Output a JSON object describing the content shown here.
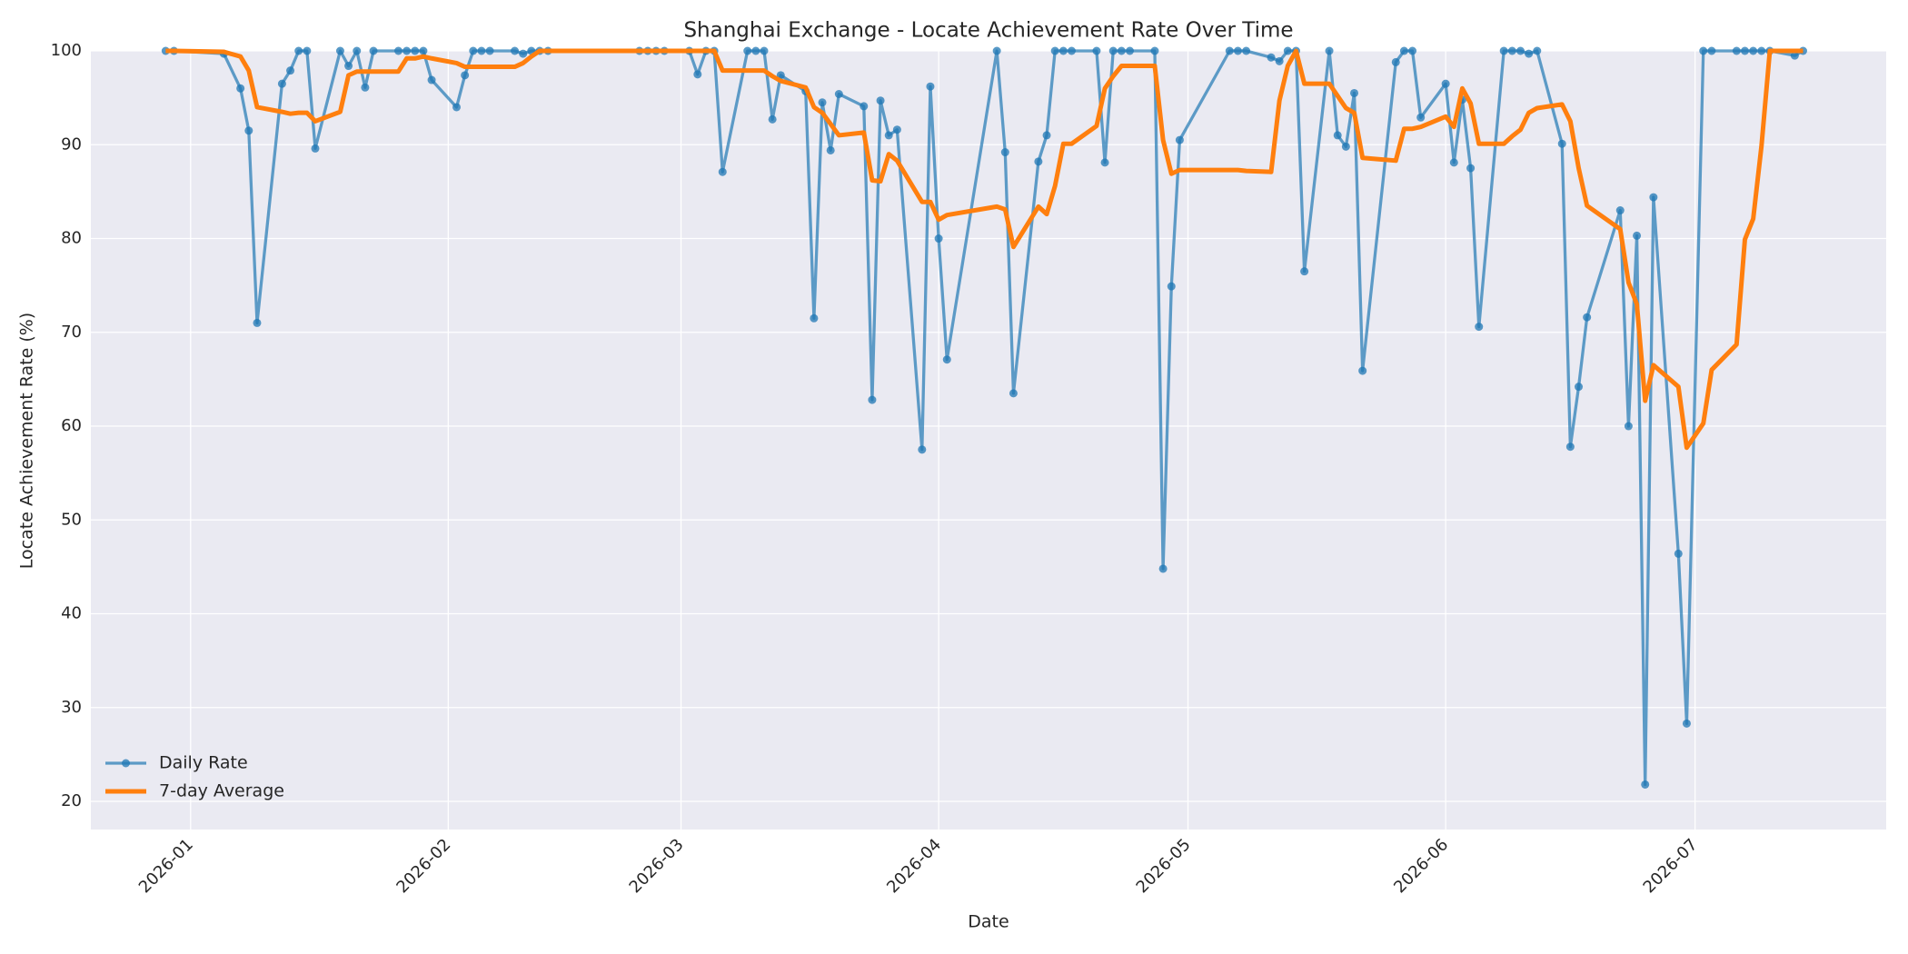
{
  "chart_data": {
    "type": "line",
    "title": "Shanghai Exchange - Locate Achievement Rate Over Time",
    "x_label": "Date",
    "y_label": "Locate Achievement Rate (%)",
    "xlim": [
      "2025-12-20",
      "2026-07-24"
    ],
    "xticks": [
      {
        "value": "2026-01-01",
        "label": "2026-01"
      },
      {
        "value": "2026-02-01",
        "label": "2026-02"
      },
      {
        "value": "2026-03-01",
        "label": "2026-03"
      },
      {
        "value": "2026-04-01",
        "label": "2026-04"
      },
      {
        "value": "2026-05-01",
        "label": "2026-05"
      },
      {
        "value": "2026-06-01",
        "label": "2026-06"
      },
      {
        "value": "2026-07-01",
        "label": "2026-07"
      }
    ],
    "ylim": [
      17,
      100
    ],
    "yticks": [
      20,
      30,
      40,
      50,
      60,
      70,
      80,
      90,
      100
    ],
    "grid": true,
    "legend": "lower left",
    "x": [
      "2025-12-29",
      "2025-12-30",
      "2026-01-05",
      "2026-01-07",
      "2026-01-08",
      "2026-01-09",
      "2026-01-12",
      "2026-01-13",
      "2026-01-14",
      "2026-01-15",
      "2026-01-16",
      "2026-01-19",
      "2026-01-20",
      "2026-01-21",
      "2026-01-22",
      "2026-01-23",
      "2026-01-26",
      "2026-01-27",
      "2026-01-28",
      "2026-01-29",
      "2026-01-30",
      "2026-02-02",
      "2026-02-03",
      "2026-02-04",
      "2026-02-05",
      "2026-02-06",
      "2026-02-09",
      "2026-02-10",
      "2026-02-11",
      "2026-02-12",
      "2026-02-13",
      "2026-02-24",
      "2026-02-25",
      "2026-02-26",
      "2026-02-27",
      "2026-03-02",
      "2026-03-03",
      "2026-03-04",
      "2026-03-05",
      "2026-03-06",
      "2026-03-09",
      "2026-03-10",
      "2026-03-11",
      "2026-03-12",
      "2026-03-13",
      "2026-03-16",
      "2026-03-17",
      "2026-03-18",
      "2026-03-19",
      "2026-03-20",
      "2026-03-23",
      "2026-03-24",
      "2026-03-25",
      "2026-03-26",
      "2026-03-27",
      "2026-03-30",
      "2026-03-31",
      "2026-04-01",
      "2026-04-02",
      "2026-04-08",
      "2026-04-09",
      "2026-04-10",
      "2026-04-13",
      "2026-04-14",
      "2026-04-15",
      "2026-04-16",
      "2026-04-17",
      "2026-04-20",
      "2026-04-21",
      "2026-04-22",
      "2026-04-23",
      "2026-04-24",
      "2026-04-27",
      "2026-04-28",
      "2026-04-29",
      "2026-04-30",
      "2026-05-06",
      "2026-05-07",
      "2026-05-08",
      "2026-05-11",
      "2026-05-12",
      "2026-05-13",
      "2026-05-14",
      "2026-05-15",
      "2026-05-18",
      "2026-05-19",
      "2026-05-20",
      "2026-05-21",
      "2026-05-22",
      "2026-05-26",
      "2026-05-27",
      "2026-05-28",
      "2026-05-29",
      "2026-06-01",
      "2026-06-02",
      "2026-06-03",
      "2026-06-04",
      "2026-06-05",
      "2026-06-08",
      "2026-06-09",
      "2026-06-10",
      "2026-06-11",
      "2026-06-12",
      "2026-06-15",
      "2026-06-16",
      "2026-06-17",
      "2026-06-18",
      "2026-06-22",
      "2026-06-23",
      "2026-06-24",
      "2026-06-25",
      "2026-06-26",
      "2026-06-29",
      "2026-06-30",
      "2026-07-02",
      "2026-07-03",
      "2026-07-06",
      "2026-07-07",
      "2026-07-08",
      "2026-07-09",
      "2026-07-10",
      "2026-07-13",
      "2026-07-14"
    ],
    "series": [
      {
        "name": "Daily Rate",
        "color": "#1f77b4",
        "line_width": 3.3,
        "marker": "circle",
        "values": [
          100,
          100,
          99.7,
          96,
          91.5,
          71,
          96.5,
          97.9,
          100,
          100,
          89.6,
          100,
          98.4,
          100,
          96.1,
          100,
          100,
          100,
          100,
          100,
          96.9,
          94,
          97.4,
          100,
          100,
          100,
          100,
          99.7,
          100,
          100,
          100,
          100,
          100,
          100,
          100,
          100,
          97.5,
          100,
          100,
          87.1,
          100,
          100,
          100,
          92.7,
          97.4,
          95.7,
          71.5,
          94.5,
          89.4,
          95.4,
          94.1,
          62.8,
          94.7,
          91,
          91.6,
          57.5,
          96.2,
          80,
          67.1,
          100,
          89.2,
          63.5,
          88.2,
          91,
          100,
          100,
          100,
          100,
          88.1,
          100,
          100,
          100,
          100,
          44.8,
          74.9,
          90.5,
          100,
          100,
          100,
          99.3,
          98.9,
          100,
          100,
          76.5,
          100,
          91,
          89.8,
          95.5,
          65.9,
          98.8,
          100,
          100,
          92.9,
          96.5,
          88.1,
          94.8,
          87.5,
          70.6,
          100,
          100,
          100,
          99.7,
          100,
          90.1,
          57.8,
          64.2,
          71.6,
          83,
          60,
          80.3,
          21.8,
          84.4,
          46.4,
          28.3,
          100,
          100,
          100,
          100,
          100,
          100,
          100,
          99.5,
          100
        ]
      },
      {
        "name": "7-day Average",
        "color": "#ff7f0e",
        "line_width": 5,
        "values": [
          100,
          100,
          99.9,
          99.4,
          97.9,
          94,
          93.5,
          93.3,
          93.4,
          93.4,
          92.5,
          93.5,
          97.4,
          97.8,
          97.8,
          97.8,
          97.8,
          99.2,
          99.2,
          99.4,
          99.2,
          98.7,
          98.3,
          98.3,
          98.3,
          98.3,
          98.3,
          98.7,
          99.4,
          100,
          100,
          100,
          100,
          100,
          100,
          100,
          100,
          100,
          100,
          97.9,
          97.9,
          97.9,
          97.9,
          97.3,
          96.8,
          96.1,
          94,
          93.4,
          92.2,
          91,
          91.3,
          86.2,
          86.1,
          89,
          88.3,
          83.9,
          83.9,
          82,
          82.5,
          83.4,
          83.1,
          79.1,
          83.4,
          82.6,
          85.6,
          90.1,
          90.1,
          92,
          96,
          97.3,
          98.4,
          98.4,
          98.4,
          90.5,
          86.9,
          87.3,
          87.3,
          87.3,
          87.2,
          87.1,
          94.7,
          98.4,
          100,
          96.5,
          96.5,
          95.2,
          93.9,
          93.4,
          88.6,
          88.3,
          91.7,
          91.7,
          91.9,
          93,
          91.9,
          96,
          94.4,
          90.1,
          90.1,
          90.9,
          91.6,
          93.4,
          93.9,
          94.3,
          92.5,
          87.5,
          83.5,
          81,
          75.3,
          73,
          62.7,
          66.5,
          64.2,
          57.7,
          60.3,
          66,
          68.7,
          79.9,
          82.1,
          89.9,
          100,
          100,
          100
        ]
      }
    ]
  }
}
